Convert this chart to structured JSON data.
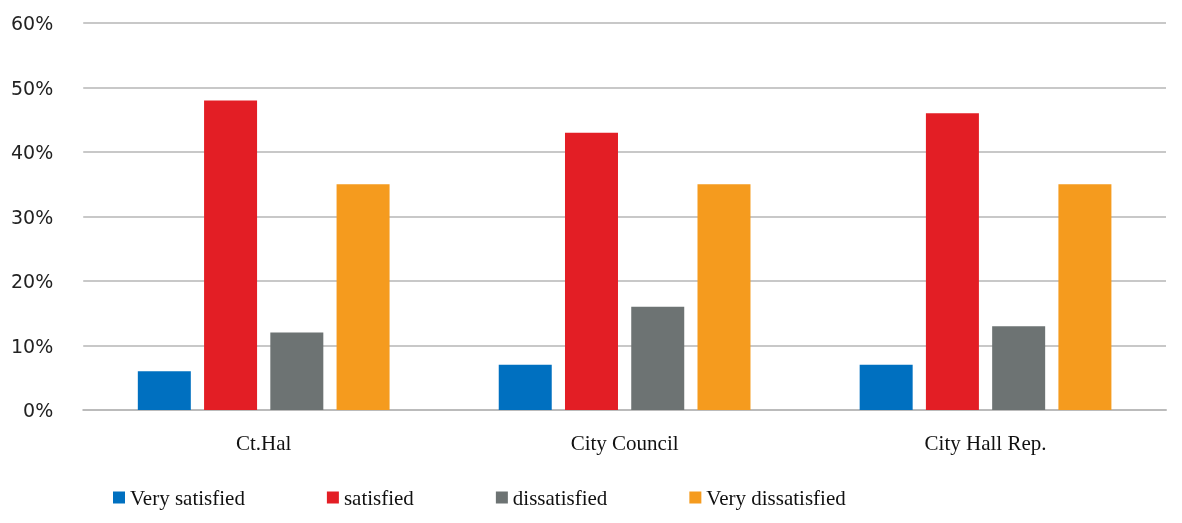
{
  "chart_data": {
    "type": "bar",
    "categories": [
      "Ct.Hal",
      "City Council",
      "City Hall Rep."
    ],
    "series": [
      {
        "name": "Very satisfied",
        "color": "#0070c0",
        "values": [
          6,
          7,
          7
        ]
      },
      {
        "name": "satisfied",
        "color": "#e31e25",
        "values": [
          48,
          43,
          46
        ]
      },
      {
        "name": "dissatisfied",
        "color": "#6d7373",
        "values": [
          12,
          16,
          13
        ]
      },
      {
        "name": "Very dissatisfied",
        "color": "#f59b1e",
        "values": [
          35,
          35,
          35
        ]
      }
    ],
    "ylim": [
      0,
      60
    ],
    "yticks": [
      {
        "value": 0,
        "label": "0%"
      },
      {
        "value": 10,
        "label": "10%"
      },
      {
        "value": 20,
        "label": "20%"
      },
      {
        "value": 30,
        "label": "30%"
      },
      {
        "value": 40,
        "label": "40%"
      },
      {
        "value": 50,
        "label": "50%"
      },
      {
        "value": 60,
        "label": "60%"
      }
    ],
    "grid": "y",
    "legend": "bottom"
  }
}
